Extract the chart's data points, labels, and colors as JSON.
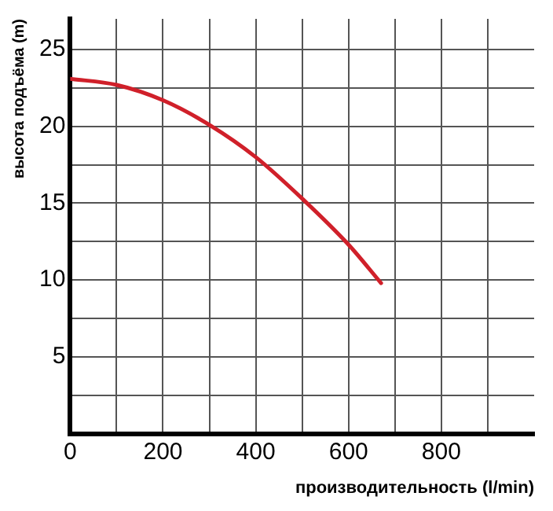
{
  "chart_data": {
    "type": "line",
    "xlabel": "производительность (l/min)",
    "ylabel": "высота подъёма (m)",
    "x": [
      0,
      100,
      200,
      300,
      400,
      500,
      600,
      670
    ],
    "series": [
      {
        "color": "#d0202a",
        "values": [
          23.1,
          22.7,
          21.7,
          20.1,
          18.0,
          15.3,
          12.3,
          9.8
        ]
      }
    ],
    "xlim": [
      0,
      1000
    ],
    "ylim": [
      0,
      27
    ],
    "xticks": [
      0,
      {
        "value": 100,
        "label": null
      },
      200,
      {
        "value": 300,
        "label": null
      },
      400,
      {
        "value": 500,
        "label": null
      },
      600,
      {
        "value": 700,
        "label": null
      },
      800,
      {
        "value": 900,
        "label": null
      }
    ],
    "yticks": [
      {
        "value": 2.5,
        "label": null
      },
      5,
      {
        "value": 7.5,
        "label": null
      },
      10,
      {
        "value": 12.5,
        "label": null
      },
      15,
      {
        "value": 17.5,
        "label": null
      },
      20,
      {
        "value": 22.5,
        "label": null
      },
      25
    ],
    "grid": true,
    "marker": "none",
    "line_style": "solid",
    "legend": false
  }
}
